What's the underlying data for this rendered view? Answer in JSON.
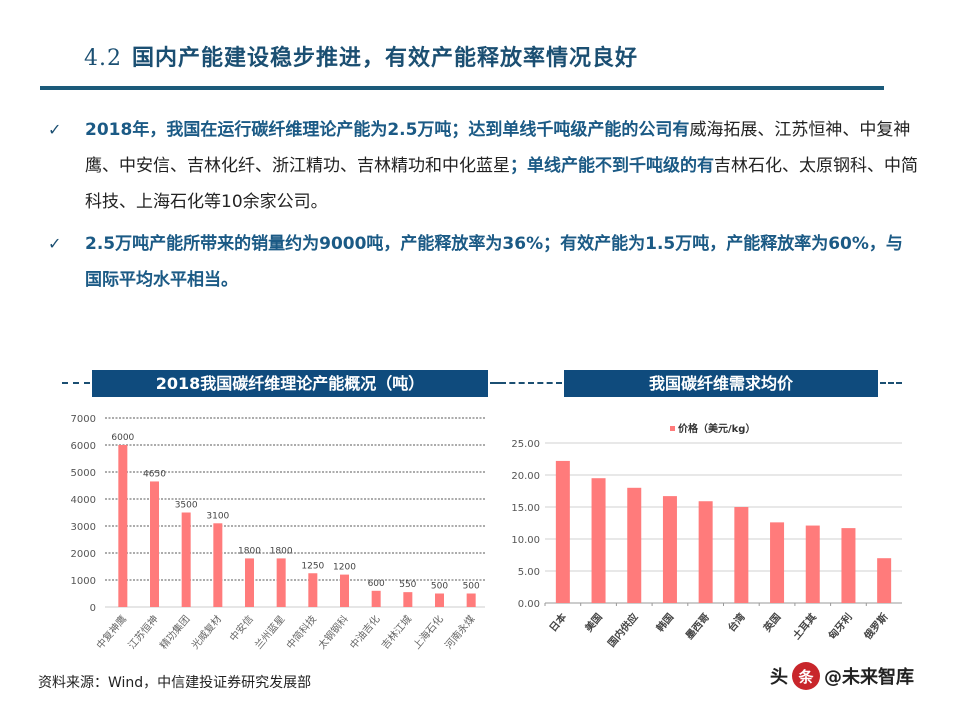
{
  "header": {
    "section_number": "4.2",
    "title": "国内产能建设稳步推进，有效产能释放率情况良好"
  },
  "bullets": [
    {
      "icon": "check-icon",
      "check": "✓",
      "segments": [
        {
          "text": "2018年，我国在运行碳纤维理论产能为2.5万吨；达到单线千吨级产能的公司有",
          "bold": true
        },
        {
          "text": "威海拓展、江苏恒神、中复神鹰、中安信、吉林化纤、浙江精功、吉林精功和中化蓝星",
          "bold": false
        },
        {
          "text": "；单线产能不到千吨级的有",
          "bold": true
        },
        {
          "text": "吉林石化、太原钢科、中简科技、上海石化等10余家公司。",
          "bold": false
        }
      ]
    },
    {
      "icon": "check-icon",
      "check": "✓",
      "segments": [
        {
          "text": "2.5万吨产能所带来的销量约为9000吨，产能释放率为36%；有效产能为1.5万吨，产能释放率为60%，与国际平均水平相当。",
          "bold": true
        }
      ]
    }
  ],
  "chart_data": [
    {
      "type": "bar",
      "title": "2018我国碳纤维理论产能概况（吨）",
      "categories": [
        "中复神鹰",
        "江苏恒神",
        "精功集团",
        "光威复材",
        "中安信",
        "兰州蓝星",
        "中简科技",
        "太钢钢科",
        "中油吉化",
        "吉林江城",
        "上海石化",
        "河南永煤"
      ],
      "values": [
        6000,
        4650,
        3500,
        3100,
        1800,
        1800,
        1250,
        1200,
        600,
        550,
        500,
        500
      ],
      "data_labels": [
        "6000",
        "4650",
        "3500",
        "3100",
        "1800",
        "1800",
        "1250",
        "1200",
        "600",
        "550",
        "500",
        "500"
      ],
      "xlabel": "",
      "ylabel": "",
      "ylim": [
        0,
        7000
      ],
      "yticks": [
        "0",
        "1000",
        "2000",
        "3000",
        "4000",
        "5000",
        "6000",
        "7000"
      ],
      "grid": "dashed",
      "legend": null,
      "color": "#ff7b7b"
    },
    {
      "type": "bar",
      "title": "我国碳纤维需求均价",
      "categories": [
        "日本",
        "美国",
        "国内供应",
        "韩国",
        "墨西哥",
        "台湾",
        "英国",
        "土耳其",
        "匈牙利",
        "俄罗斯"
      ],
      "series": [
        {
          "name": "价格（美元/kg）",
          "values": [
            22.2,
            19.5,
            18.0,
            16.7,
            15.9,
            15.0,
            12.6,
            12.1,
            11.7,
            7.0
          ]
        }
      ],
      "xlabel": "",
      "ylabel": "",
      "ylim": [
        0,
        25
      ],
      "yticks": [
        "0.00",
        "5.00",
        "10.00",
        "15.00",
        "20.00",
        "25.00"
      ],
      "grid": "solid",
      "legend": {
        "position": "top",
        "label": "价格（美元/kg）"
      },
      "color": "#ff7b7b"
    }
  ],
  "footer": {
    "source": "资料来源：Wind，中信建投证券研究发展部",
    "watermark_seal": "条",
    "watermark_text": "头条 @未来智库"
  }
}
